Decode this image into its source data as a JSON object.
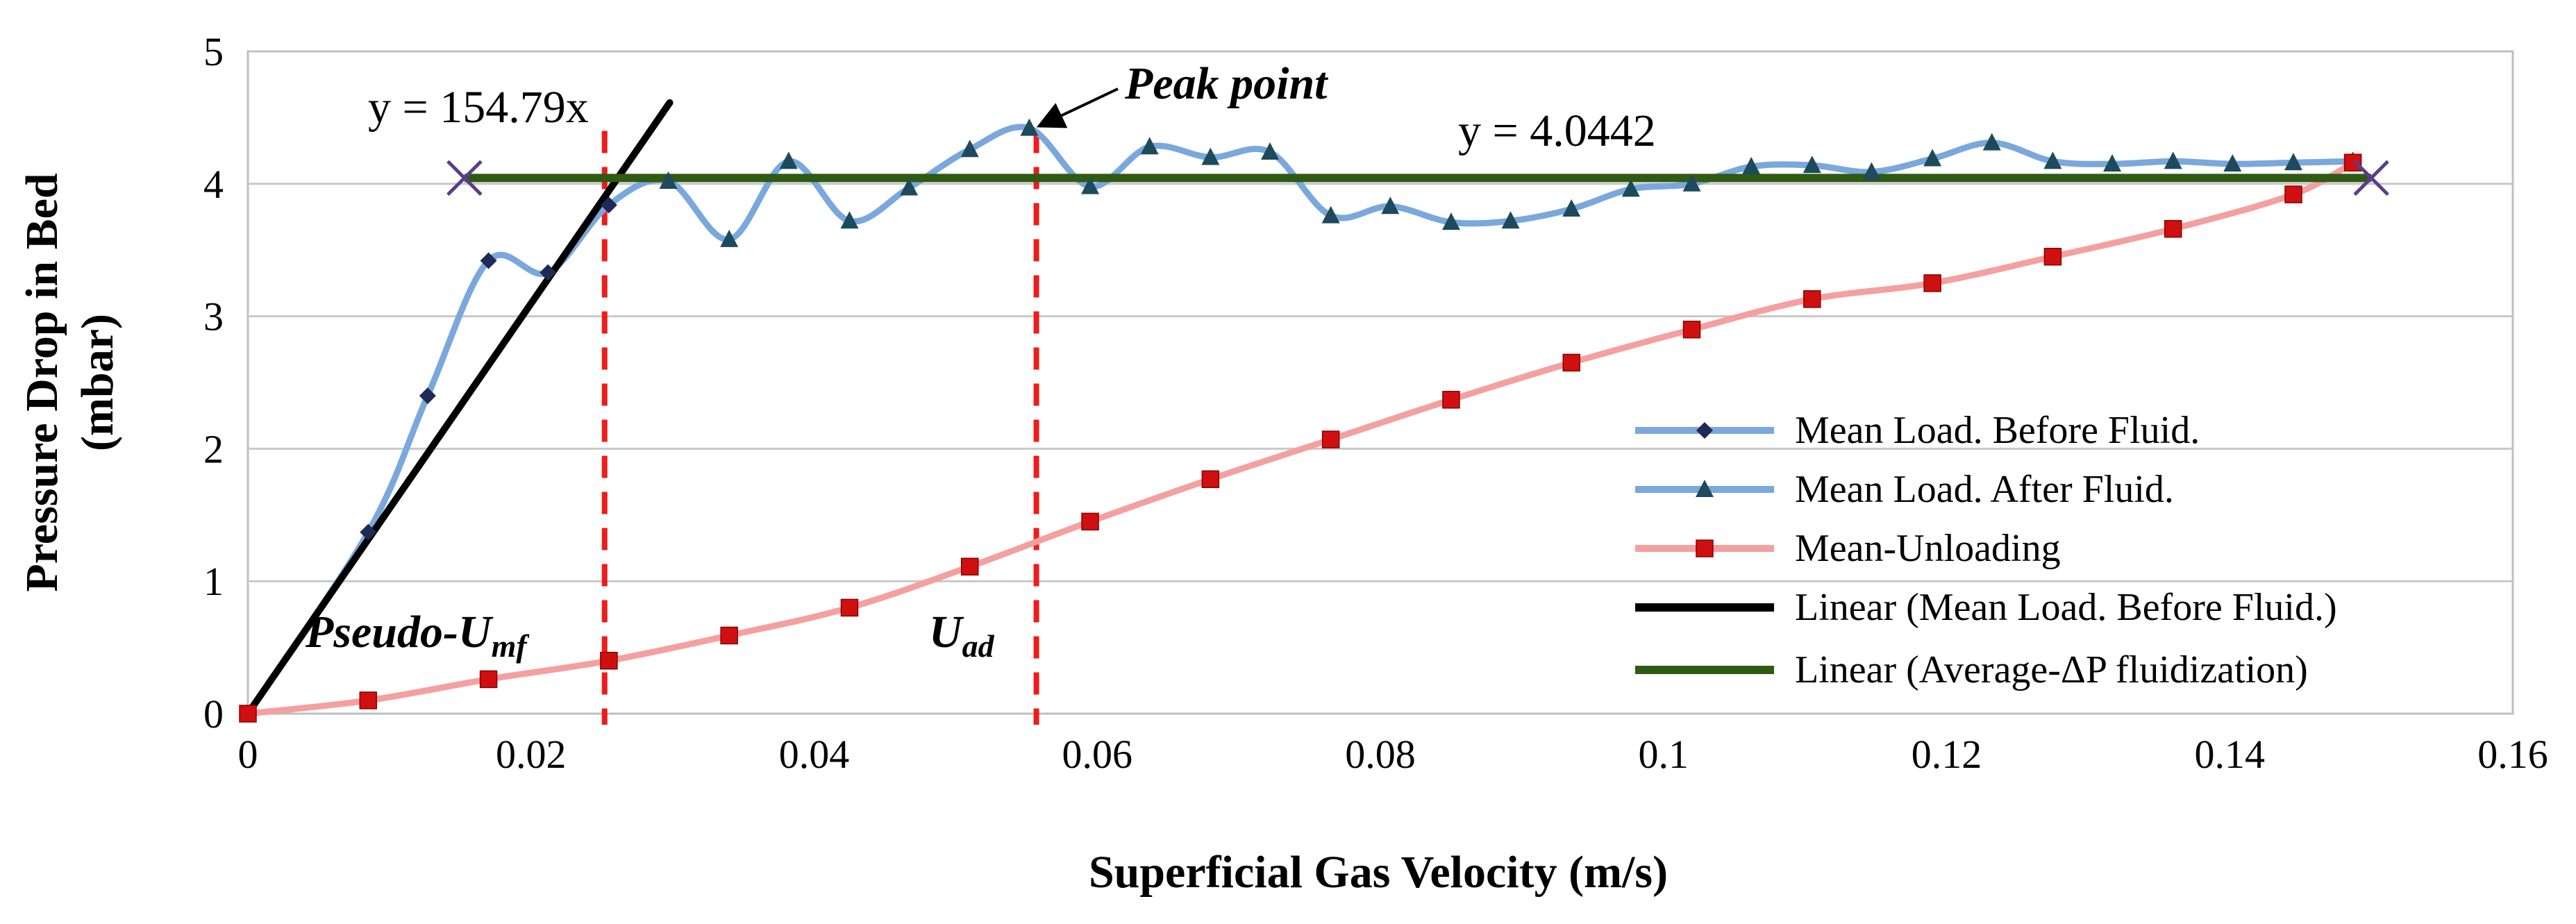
{
  "chart_data": {
    "type": "line",
    "title": "",
    "xlabel": "Superficial Gas Velocity (m/s)",
    "ylabel_line1": "Pressure Drop in Bed",
    "ylabel_line2": "(mbar)",
    "xlim": [
      0,
      0.16
    ],
    "ylim": [
      0,
      5
    ],
    "x_ticks": [
      0,
      0.02,
      0.04,
      0.06,
      0.08,
      0.1,
      0.12,
      0.14,
      0.16
    ],
    "x_tick_labels": [
      "0",
      "0.02",
      "0.04",
      "0.06",
      "0.08",
      "0.1",
      "0.12",
      "0.14",
      "0.16"
    ],
    "y_ticks": [
      0,
      1,
      2,
      3,
      4,
      5
    ],
    "y_tick_labels": [
      "0",
      "1",
      "2",
      "3",
      "4",
      "5"
    ],
    "grid": "horizontal",
    "series": [
      {
        "name": "Mean Load. Before Fluid.",
        "color": "#7aa8dc",
        "marker_color": "#1f2a55",
        "marker": "diamond",
        "points": [
          [
            0,
            0
          ],
          [
            0.0085,
            1.37
          ],
          [
            0.0127,
            2.4
          ],
          [
            0.017,
            3.42
          ],
          [
            0.0212,
            3.33
          ],
          [
            0.0255,
            3.84
          ]
        ]
      },
      {
        "name": "Mean Load. After Fluid.",
        "color": "#7aa8dc",
        "marker_color": "#1d4a5c",
        "marker": "triangle",
        "points": [
          [
            0.0255,
            3.84
          ],
          [
            0.0297,
            4.02
          ],
          [
            0.034,
            3.58
          ],
          [
            0.0382,
            4.17
          ],
          [
            0.0425,
            3.72
          ],
          [
            0.0467,
            3.97
          ],
          [
            0.051,
            4.26
          ],
          [
            0.0552,
            4.42
          ],
          [
            0.0595,
            3.98
          ],
          [
            0.0637,
            4.28
          ],
          [
            0.068,
            4.2
          ],
          [
            0.0722,
            4.24
          ],
          [
            0.0765,
            3.76
          ],
          [
            0.0807,
            3.83
          ],
          [
            0.085,
            3.71
          ],
          [
            0.0892,
            3.72
          ],
          [
            0.0935,
            3.81
          ],
          [
            0.0977,
            3.96
          ],
          [
            0.102,
            4.0
          ],
          [
            0.1062,
            4.13
          ],
          [
            0.1105,
            4.14
          ],
          [
            0.1147,
            4.09
          ],
          [
            0.119,
            4.19
          ],
          [
            0.1232,
            4.31
          ],
          [
            0.1275,
            4.17
          ],
          [
            0.1317,
            4.15
          ],
          [
            0.136,
            4.17
          ],
          [
            0.1402,
            4.15
          ],
          [
            0.1445,
            4.16
          ],
          [
            0.1487,
            4.17
          ]
        ]
      },
      {
        "name": "Mean-Unloading",
        "color": "#f4a0a0",
        "marker_color": "#d01010",
        "marker": "square",
        "points": [
          [
            0,
            0
          ],
          [
            0.0085,
            0.1
          ],
          [
            0.017,
            0.26
          ],
          [
            0.0255,
            0.4
          ],
          [
            0.034,
            0.59
          ],
          [
            0.0425,
            0.8
          ],
          [
            0.051,
            1.11
          ],
          [
            0.0595,
            1.45
          ],
          [
            0.068,
            1.77
          ],
          [
            0.0765,
            2.07
          ],
          [
            0.085,
            2.37
          ],
          [
            0.0935,
            2.65
          ],
          [
            0.102,
            2.9
          ],
          [
            0.1105,
            3.13
          ],
          [
            0.119,
            3.25
          ],
          [
            0.1275,
            3.45
          ],
          [
            0.136,
            3.66
          ],
          [
            0.1445,
            3.92
          ],
          [
            0.1487,
            4.16
          ]
        ]
      }
    ],
    "trendlines": [
      {
        "name": "Linear (Mean Load. Before Fluid.)",
        "color": "#000000",
        "slope": 154.79,
        "intercept": 0,
        "x_range": [
          0,
          0.0298
        ],
        "equation": "y = 154.79x"
      },
      {
        "name": "Linear (Average-ΔP  fluidization)",
        "color": "#2f5a14",
        "constant": 4.0442,
        "x_range": [
          0.0153,
          0.15
        ],
        "equation": "y = 4.0442"
      }
    ],
    "cross_markers": [
      [
        0.0153,
        4.0442
      ],
      [
        0.15,
        4.0442
      ]
    ],
    "vertical_lines": [
      {
        "x": 0.0252,
        "color": "#ee1c1c",
        "label_prefix": "Pseudo-U",
        "label_sub": "mf"
      },
      {
        "x": 0.0557,
        "color": "#ee1c1c",
        "label_prefix": "U",
        "label_sub": "ad"
      }
    ],
    "peak_annotation": {
      "text": "Peak point",
      "target": [
        0.0552,
        4.42
      ]
    },
    "legend_position": "bottom-right"
  }
}
